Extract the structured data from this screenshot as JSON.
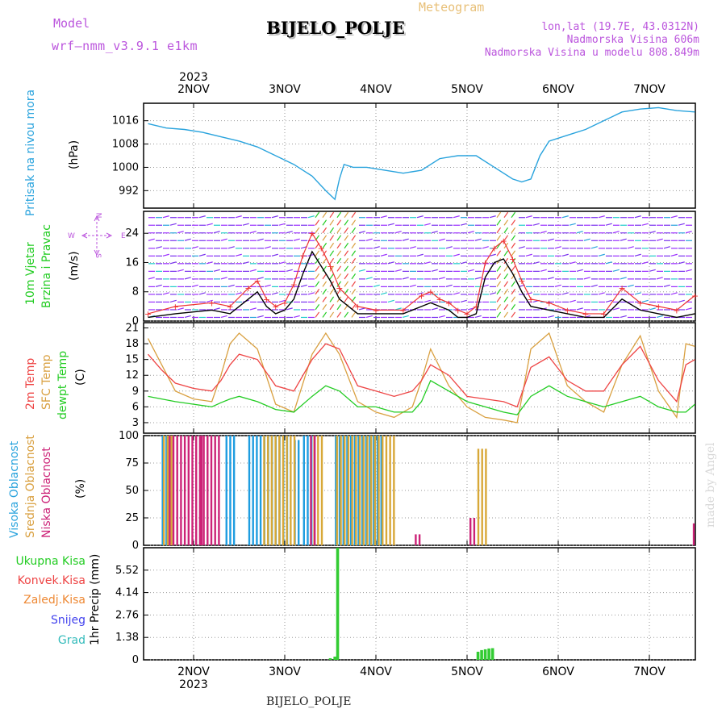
{
  "header": {
    "model_label": "Model",
    "model_name": "wrf–nmm_v3.9.1  e1km",
    "station": "BIJELO_POLJE",
    "product": "Meteogram",
    "coords": "lon,lat (19.7E, 43.0312N)",
    "elevation": "Nadmorska Visina 606m",
    "model_elevation": "Nadmorska Visina u modelu 808.849m"
  },
  "footer": {
    "station": "BIJELO_POLJE",
    "watermark": "made by Angel"
  },
  "axis": {
    "year": "2023",
    "days": [
      "2NOV",
      "3NOV",
      "4NOV",
      "5NOV",
      "6NOV",
      "7NOV"
    ]
  },
  "panel_labels": {
    "pressure": [
      "Pritisak na nivou mora"
    ],
    "pressure_unit": "(hPa)",
    "wind": [
      "10m Vjetar",
      "Brzina i Pravac"
    ],
    "wind_unit": "(m/s)",
    "wind_compass": {
      "n": "N",
      "s": "S",
      "e": "E",
      "w": "W"
    },
    "temp_lines": [
      "2m Temp",
      "SFC Temp",
      "dewpt Temp"
    ],
    "temp_unit": "(C)",
    "cloud_lines": [
      "Visoka Oblacnost",
      "Srednja Oblacnost",
      "Niska Oblacnost"
    ],
    "cloud_unit": "(%)",
    "precip_axis": "1hr Precip (mm)",
    "precip_legend": [
      "Ukupna Kisa",
      "Konvek.Kisa",
      "Zaledj.Kisa",
      "Snijeg",
      "Grad"
    ]
  },
  "colors": {
    "pressure": "#29a3dd",
    "wind_speed": "#000000",
    "gust": "#ee3333",
    "temp2m": "#ee4444",
    "sfc": "#d9a040",
    "dewpt": "#22cc22",
    "cloud_high": "#1e9de0",
    "cloud_mid": "#d8a838",
    "cloud_low": "#cc2277",
    "precip": "#33cc33",
    "label_green": "#22cc22",
    "label_red": "#ee4444",
    "label_orange": "#ee8833",
    "label_blue": "#4444ee",
    "label_teal": "#33bbbb",
    "purple": "#bb55dd"
  },
  "chart_data": [
    {
      "type": "line",
      "name": "pressure",
      "x_unit": "day index from 2NOV 00UTC",
      "xlim": [
        -0.5,
        5.5
      ],
      "ylim": [
        986,
        1022
      ],
      "yticks": [
        992,
        1000,
        1008,
        1016
      ],
      "x": [
        -0.5,
        -0.3,
        -0.1,
        0.1,
        0.3,
        0.5,
        0.7,
        0.9,
        1.1,
        1.3,
        1.45,
        1.55,
        1.6,
        1.65,
        1.75,
        1.9,
        2.1,
        2.3,
        2.5,
        2.7,
        2.9,
        3.1,
        3.3,
        3.5,
        3.6,
        3.7,
        3.8,
        3.9,
        4.1,
        4.3,
        4.5,
        4.7,
        4.9,
        5.1,
        5.3,
        5.5
      ],
      "values": [
        1015,
        1013.5,
        1013,
        1012,
        1010.5,
        1009,
        1007,
        1004,
        1001,
        997,
        992,
        989,
        996,
        1001,
        1000,
        1000,
        999,
        998,
        999,
        1003,
        1004,
        1004,
        1000,
        996,
        995,
        996,
        1004,
        1009,
        1011,
        1013,
        1016,
        1019,
        1020,
        1020.5,
        1019.5,
        1019
      ]
    },
    {
      "type": "line",
      "name": "wind",
      "ylim": [
        0,
        30
      ],
      "yticks": [
        0,
        8,
        16,
        24
      ],
      "x": [
        -0.5,
        -0.2,
        0.2,
        0.4,
        0.6,
        0.7,
        0.8,
        0.9,
        1.0,
        1.1,
        1.2,
        1.3,
        1.4,
        1.5,
        1.6,
        1.8,
        2.0,
        2.3,
        2.5,
        2.6,
        2.7,
        2.8,
        2.9,
        3.0,
        3.1,
        3.2,
        3.3,
        3.4,
        3.5,
        3.6,
        3.7,
        3.9,
        4.1,
        4.3,
        4.5,
        4.7,
        4.9,
        5.1,
        5.3,
        5.5
      ],
      "speed": [
        1,
        2,
        3,
        2,
        6,
        8,
        4,
        2,
        3,
        6,
        13,
        19,
        15,
        11,
        6,
        2,
        2,
        2,
        4,
        5,
        4,
        3,
        1,
        1,
        2,
        12,
        16,
        17,
        13,
        8,
        4,
        3,
        2,
        1,
        1,
        6,
        3,
        2,
        1,
        2
      ],
      "gust": [
        2,
        4,
        5,
        4,
        9,
        11,
        6,
        4,
        5,
        10,
        18,
        24,
        20,
        15,
        9,
        4,
        3,
        3,
        7,
        8,
        6,
        5,
        3,
        2,
        4,
        16,
        20,
        22,
        17,
        11,
        6,
        5,
        3,
        2,
        2,
        9,
        5,
        4,
        3,
        7
      ]
    },
    {
      "type": "line",
      "name": "temperature",
      "ylim": [
        1,
        22
      ],
      "yticks": [
        3,
        6,
        9,
        12,
        15,
        18,
        21
      ],
      "x": [
        -0.5,
        -0.35,
        -0.2,
        0.0,
        0.2,
        0.3,
        0.4,
        0.5,
        0.7,
        0.9,
        1.1,
        1.3,
        1.45,
        1.6,
        1.8,
        2.0,
        2.2,
        2.4,
        2.5,
        2.6,
        2.8,
        3.0,
        3.2,
        3.4,
        3.55,
        3.7,
        3.9,
        4.1,
        4.3,
        4.5,
        4.7,
        4.9,
        5.1,
        5.3,
        5.4,
        5.5
      ],
      "t2m": [
        16,
        13,
        10.5,
        9.5,
        9,
        11,
        14,
        16,
        15,
        10,
        9,
        15,
        18,
        17,
        10,
        9,
        8,
        9,
        11,
        14,
        12,
        8,
        7.5,
        7,
        6,
        13.5,
        15.5,
        11,
        9,
        9,
        14,
        17.5,
        11,
        7,
        14,
        15
      ],
      "sfc": [
        19,
        14,
        9,
        7.5,
        7,
        12,
        18,
        20,
        17,
        6.5,
        5,
        16,
        20,
        16,
        7,
        5,
        4,
        6,
        11,
        17,
        10,
        6,
        4,
        3.5,
        3,
        17,
        20,
        10,
        7,
        5,
        14,
        19.5,
        9,
        4,
        18,
        17.5
      ],
      "dewpt": [
        8,
        7.5,
        7,
        6.5,
        6,
        6.8,
        7.5,
        8,
        7,
        5.5,
        5,
        8,
        10,
        9,
        6,
        6,
        5,
        5,
        7,
        11,
        9,
        7,
        6,
        5,
        4.5,
        8,
        10,
        8,
        7,
        6,
        7,
        8,
        6,
        5,
        5,
        6.5
      ]
    },
    {
      "type": "bar",
      "name": "clouds",
      "ylim": [
        0,
        100
      ],
      "yticks": [
        0,
        25,
        50,
        75,
        100
      ],
      "high": [
        [
          -0.35,
          -0.25,
          100
        ],
        [
          0.35,
          0.45,
          100
        ],
        [
          0.6,
          1.05,
          100
        ],
        [
          1.1,
          1.15,
          96
        ],
        [
          1.2,
          1.3,
          100
        ],
        [
          1.55,
          2.05,
          100
        ]
      ],
      "mid": [
        [
          -0.35,
          -0.25,
          100
        ],
        [
          0.75,
          1.1,
          100
        ],
        [
          1.3,
          1.4,
          100
        ],
        [
          1.55,
          2.2,
          100
        ],
        [
          3.1,
          3.2,
          88
        ]
      ],
      "low": [
        [
          -0.3,
          0.25,
          100
        ],
        [
          0.05,
          0.05,
          100
        ],
        [
          1.25,
          1.3,
          100
        ],
        [
          2.4,
          2.45,
          10
        ],
        [
          3.0,
          3.05,
          25
        ],
        [
          5.45,
          5.48,
          20
        ]
      ]
    },
    {
      "type": "bar",
      "name": "precipitation",
      "ylim": [
        0,
        6.9
      ],
      "yticks": [
        0,
        1.38,
        2.76,
        4.14,
        5.52
      ],
      "bars": [
        [
          1.5,
          0.1
        ],
        [
          1.55,
          0.2
        ],
        [
          1.58,
          6.9
        ],
        [
          3.12,
          0.5
        ],
        [
          3.16,
          0.6
        ],
        [
          3.2,
          0.65
        ],
        [
          3.24,
          0.7
        ],
        [
          3.28,
          0.72
        ]
      ]
    }
  ]
}
